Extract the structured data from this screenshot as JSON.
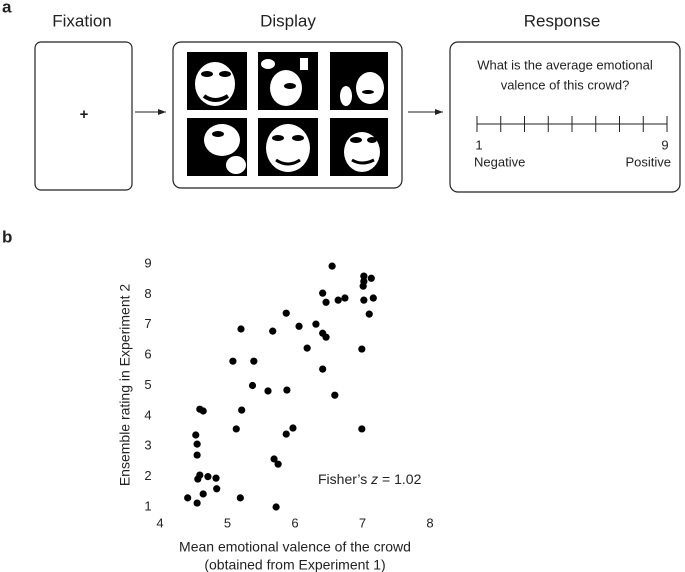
{
  "panel_a": {
    "label": "a",
    "fixation": {
      "title": "Fixation",
      "symbol": "+"
    },
    "display": {
      "title": "Display"
    },
    "response": {
      "title": "Response",
      "question": [
        "What is the average emotional",
        "valence of this crowd?"
      ],
      "scale": {
        "min": 1,
        "max": 9,
        "low_label": "Negative",
        "high_label": "Positive"
      }
    }
  },
  "panel_b": {
    "label": "b"
  },
  "chart_data": {
    "type": "scatter",
    "x_label": [
      "Mean emotional valence of the crowd",
      "(obtained from Experiment 1)"
    ],
    "y_label": "Ensemble rating in Experiment 2",
    "annotation": {
      "prefix": "Fisher’s ",
      "variable": "z",
      "suffix": " = 1.02"
    },
    "color": "#000000",
    "x": [
      4.41,
      4.55,
      4.64,
      4.59,
      4.56,
      4.71,
      4.83,
      4.84,
      4.53,
      4.55,
      4.55,
      4.59,
      4.64,
      5.19,
      5.13,
      5.21,
      5.08,
      5.2,
      5.39,
      5.37,
      5.6,
      5.72,
      5.69,
      5.75,
      5.87,
      5.97,
      5.88,
      5.67,
      5.87,
      6.06,
      6.18,
      6.31,
      6.41,
      6.46,
      6.41,
      6.41,
      6.46,
      6.59,
      6.55,
      6.64,
      6.74,
      6.99,
      6.99,
      7.02,
      7.01,
      7.02,
      7.02,
      7.13,
      7.16,
      7.1
    ],
    "values": [
      1.3,
      1.13,
      1.43,
      2.05,
      1.92,
      2.0,
      1.95,
      1.6,
      3.37,
      3.07,
      2.71,
      4.22,
      4.16,
      1.3,
      3.57,
      4.19,
      5.8,
      6.86,
      5.8,
      5.0,
      4.82,
      1.0,
      2.58,
      2.41,
      3.4,
      3.6,
      4.85,
      6.79,
      7.38,
      6.95,
      6.23,
      7.02,
      6.72,
      6.59,
      5.54,
      8.04,
      7.74,
      4.68,
      8.93,
      7.81,
      7.88,
      3.57,
      6.2,
      8.6,
      8.27,
      8.43,
      7.81,
      8.53,
      7.88,
      7.35
    ],
    "xlim": [
      4,
      8
    ],
    "ylim": [
      1,
      9
    ],
    "xticks": [
      4,
      5,
      6,
      7,
      8
    ],
    "yticks": [
      1,
      2,
      3,
      4,
      5,
      6,
      7,
      8,
      9
    ],
    "grid": false
  }
}
